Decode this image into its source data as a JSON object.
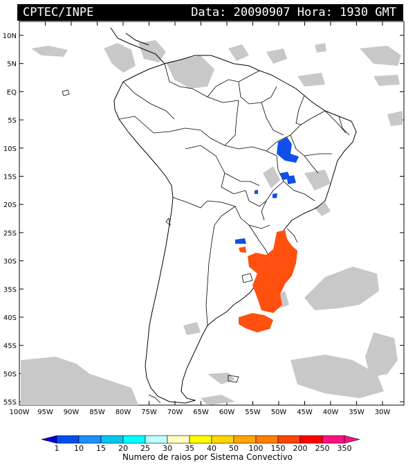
{
  "header": {
    "source": "CPTEC/INPE",
    "datetime": "Data: 20090907 Hora: 1930 GMT"
  },
  "map": {
    "lat_labels": [
      "10N",
      "5N",
      "EQ",
      "5S",
      "10S",
      "15S",
      "20S",
      "25S",
      "30S",
      "35S",
      "40S",
      "45S",
      "50S",
      "55S"
    ],
    "lon_labels": [
      "100W",
      "95W",
      "90W",
      "85W",
      "80W",
      "75W",
      "70W",
      "65W",
      "60W",
      "55W",
      "50W",
      "45W",
      "40W",
      "35W",
      "30W"
    ]
  },
  "legend": {
    "title": "Numero de raios por Sistema Convectivo",
    "values": [
      "1",
      "10",
      "15",
      "20",
      "25",
      "30",
      "35",
      "40",
      "50",
      "100",
      "150",
      "200",
      "250",
      "350"
    ],
    "colors": [
      "#0000e0",
      "#0050f0",
      "#1e90ff",
      "#00c8f0",
      "#00ffff",
      "#c0ffff",
      "#ffffc0",
      "#ffff00",
      "#ffd700",
      "#ffa500",
      "#ff7f00",
      "#ff4500",
      "#ff0000",
      "#ff1080"
    ]
  }
}
